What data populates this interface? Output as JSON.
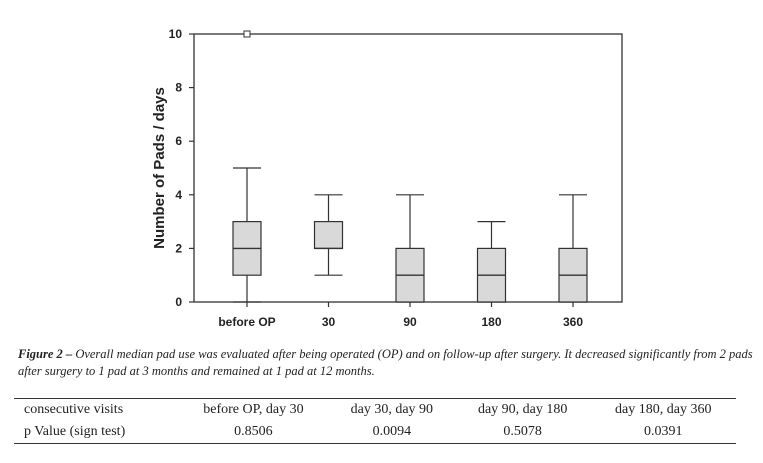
{
  "chart_data": {
    "type": "box",
    "ylabel": "Number of Pads / days",
    "ylim": [
      0,
      10
    ],
    "yticks": [
      "0",
      "2",
      "4",
      "6",
      "8",
      "10"
    ],
    "categories": [
      "before OP",
      "30",
      "90",
      "180",
      "360"
    ],
    "boxes": [
      {
        "min": 0,
        "q1": 1,
        "median": 2,
        "q3": 3,
        "max": 5,
        "outliers": [
          10
        ]
      },
      {
        "min": 1,
        "q1": 2,
        "median": 2,
        "q3": 3,
        "max": 4,
        "outliers": []
      },
      {
        "min": 0,
        "q1": 0,
        "median": 1,
        "q3": 2,
        "max": 4,
        "outliers": []
      },
      {
        "min": 0,
        "q1": 0,
        "median": 1,
        "q3": 2,
        "max": 3,
        "outliers": []
      },
      {
        "min": 0,
        "q1": 0,
        "median": 1,
        "q3": 2,
        "max": 4,
        "outliers": []
      }
    ],
    "colors": {
      "box_fill": "#d9d9d9",
      "stroke": "#333333"
    }
  },
  "caption": {
    "lead": "Figure 2 –",
    "text": " Overall median pad use was evaluated after being operated (OP) and on follow-up after surgery. It decreased significantly from 2 pads after surgery to 1 pad at 3 months and remained at 1 pad at 12 months."
  },
  "table": {
    "header": [
      "consecutive visits",
      "before OP, day 30",
      "day 30, day 90",
      "day 90, day 180",
      "day 180, day 360"
    ],
    "row": [
      "p Value (sign test)",
      "0.8506",
      "0.0094",
      "0.5078",
      "0.0391"
    ]
  }
}
